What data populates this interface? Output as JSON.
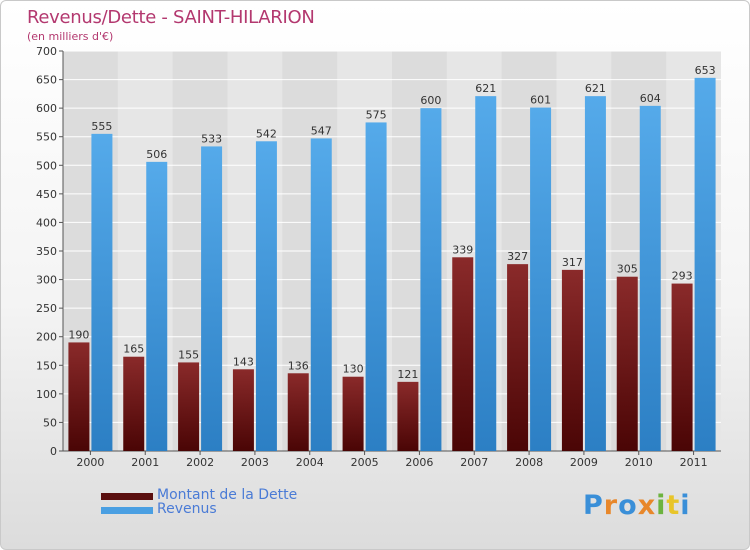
{
  "chart_data": {
    "type": "bar",
    "title": "Revenus/Dette - SAINT-HILARION",
    "subtitle": "(en milliers d'€)",
    "categories": [
      "2000",
      "2001",
      "2002",
      "2003",
      "2004",
      "2005",
      "2006",
      "2007",
      "2008",
      "2009",
      "2010",
      "2011"
    ],
    "series": [
      {
        "name": "Montant de la Dette",
        "color": "#7a1f1f",
        "values": [
          190,
          165,
          155,
          143,
          136,
          130,
          121,
          339,
          327,
          317,
          305,
          293
        ]
      },
      {
        "name": "Revenus",
        "color": "#4a9fe2",
        "values": [
          555,
          506,
          533,
          542,
          547,
          575,
          600,
          621,
          601,
          621,
          604,
          653
        ]
      }
    ],
    "ylim": [
      0,
      700
    ],
    "yticks": [
      0,
      50,
      100,
      150,
      200,
      250,
      300,
      350,
      400,
      450,
      500,
      550,
      600,
      650,
      700
    ],
    "grid": true,
    "legend_position": "bottom-left"
  },
  "logo": {
    "text": "Proxiti",
    "colors": [
      "#3a8fd8",
      "#e8872a",
      "#3a8fd8",
      "#e8872a",
      "#6cb33f",
      "#e8c52a",
      "#3a8fd8"
    ]
  }
}
